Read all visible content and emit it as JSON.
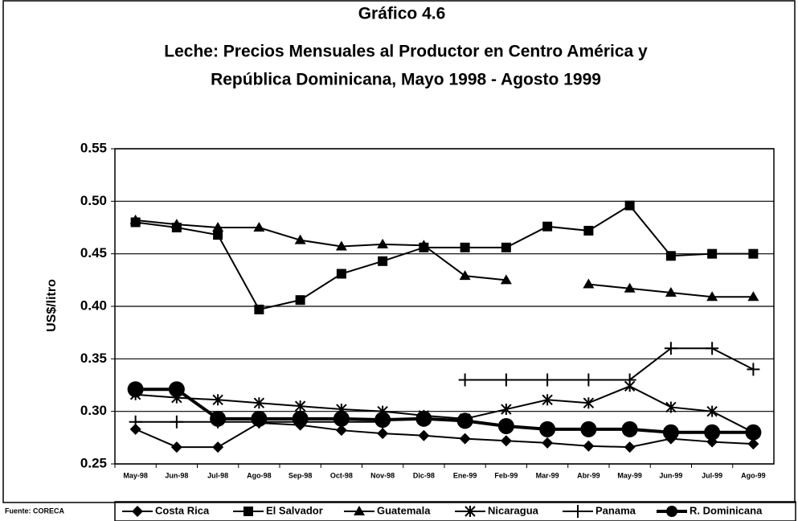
{
  "chart_data": {
    "type": "line",
    "title": [
      "Gráfico 4.6",
      "Leche: Precios Mensuales al Productor en Centro América y",
      "República Dominicana, Mayo 1998 - Agosto 1999"
    ],
    "ylabel": "US$/litro",
    "source": "Fuente: CORECA",
    "categories": [
      "May-98",
      "Jun-98",
      "Jul-98",
      "Ago-98",
      "Sep-98",
      "Oct-98",
      "Nov-98",
      "Dic-98",
      "Ene-99",
      "Feb-99",
      "Mar-99",
      "Abr-99",
      "May-99",
      "Jun-99",
      "Jul-99",
      "Ago-99"
    ],
    "ylim": [
      0.25,
      0.55
    ],
    "yticks": [
      0.25,
      {
        "value": 0.3,
        "label": "0.30"
      },
      0.35,
      {
        "value": 0.4,
        "label": "0.40"
      },
      0.45,
      {
        "value": 0.5,
        "label": "0.50"
      },
      0.55
    ],
    "grid": true,
    "series": [
      {
        "name": "Costa Rica",
        "color": "#000000",
        "marker": "diamond",
        "values": [
          0.283,
          0.266,
          0.266,
          0.289,
          0.287,
          0.282,
          0.279,
          0.277,
          0.274,
          0.272,
          0.27,
          0.267,
          0.266,
          0.274,
          0.271,
          0.269
        ]
      },
      {
        "name": "El Salvador",
        "color": "#000000",
        "marker": "square",
        "values": [
          0.48,
          0.475,
          0.468,
          0.397,
          0.406,
          0.431,
          0.443,
          0.456,
          0.456,
          0.456,
          0.476,
          0.472,
          0.496,
          0.448,
          0.45,
          0.45
        ]
      },
      {
        "name": "Guatemala",
        "color": "#000000",
        "marker": "triangle",
        "values": [
          0.482,
          0.478,
          0.475,
          0.475,
          0.463,
          0.457,
          0.459,
          0.458,
          0.429,
          0.425,
          null,
          0.421,
          0.417,
          0.413,
          0.409,
          0.409
        ]
      },
      {
        "name": "Nicaragua",
        "color": "#000000",
        "marker": "asterisk",
        "values": [
          0.316,
          0.313,
          0.311,
          0.308,
          0.305,
          0.302,
          0.3,
          0.296,
          0.293,
          0.302,
          0.311,
          0.308,
          0.324,
          0.304,
          0.3,
          0.28
        ]
      },
      {
        "name": "Panama",
        "color": "#000000",
        "marker": "plus",
        "values": [
          0.29,
          0.29,
          0.29,
          0.29,
          0.29,
          0.29,
          0.29,
          null,
          0.33,
          0.33,
          0.33,
          0.33,
          0.33,
          0.36,
          0.36,
          0.34
        ]
      },
      {
        "name": "R. Dominicana",
        "color": "#000000",
        "marker": "circle",
        "values": [
          0.321,
          0.321,
          0.293,
          0.293,
          0.293,
          0.293,
          0.292,
          0.293,
          0.291,
          0.286,
          0.283,
          0.283,
          0.283,
          0.28,
          0.28,
          0.28
        ]
      }
    ]
  }
}
